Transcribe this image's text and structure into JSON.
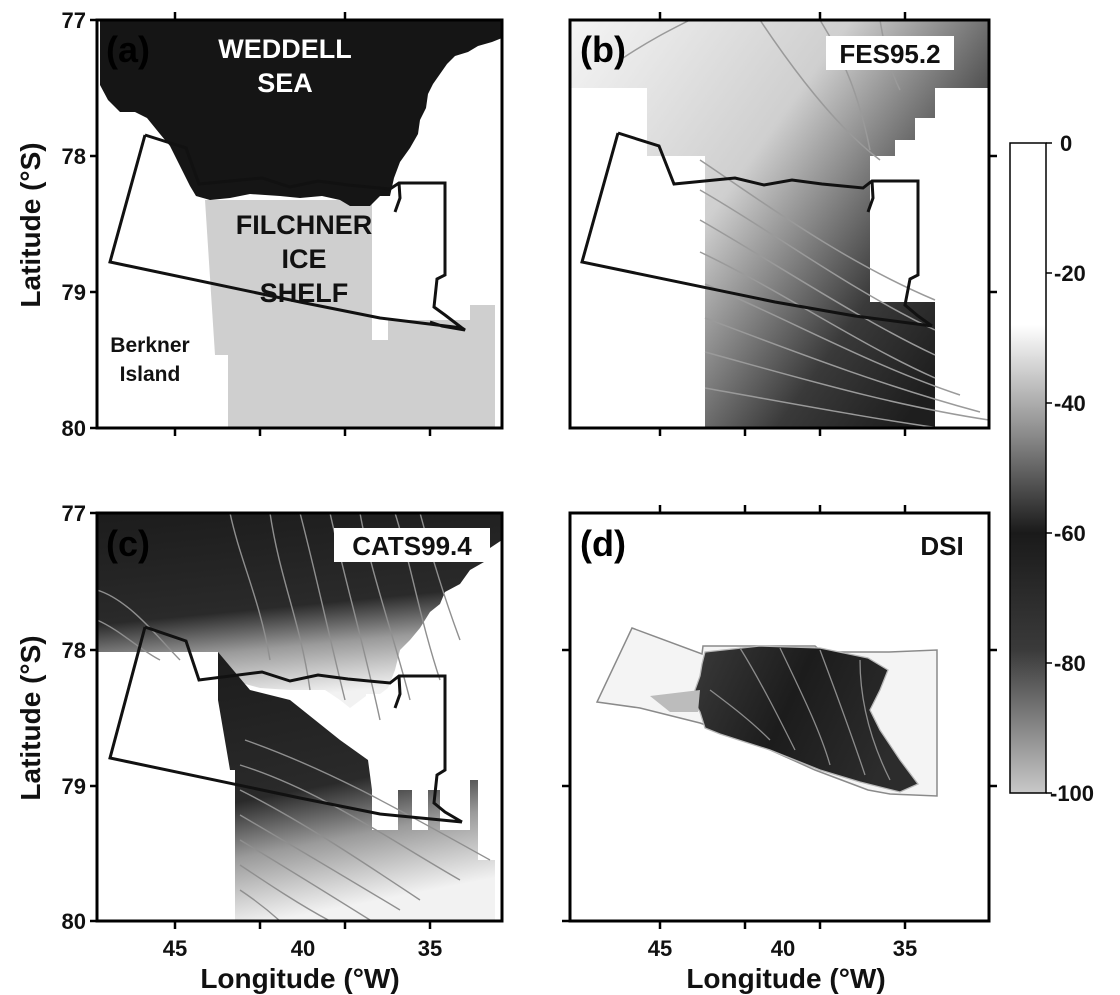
{
  "figure": {
    "ylabel": "Latitude (°S)",
    "xlabel": "Longitude (°W)",
    "lat_ticks": [
      "77",
      "78",
      "79",
      "80"
    ],
    "lon_ticks": [
      "45",
      "40",
      "35"
    ],
    "colorbar_ticks": [
      "0",
      "-20",
      "-40",
      "-60",
      "-80",
      "-100"
    ]
  },
  "panels": {
    "a": {
      "label": "(a)",
      "weddell_1": "WEDDELL",
      "weddell_2": "SEA",
      "filchner_1": "FILCHNER",
      "filchner_2": "ICE",
      "filchner_3": "SHELF",
      "berkner_1": "Berkner",
      "berkner_2": "Island"
    },
    "b": {
      "label": "(b)",
      "model": "FES95.2"
    },
    "c": {
      "label": "(c)",
      "model": "CATS99.4"
    },
    "d": {
      "label": "(d)",
      "model": "DSI"
    }
  },
  "colors": {
    "ocean_dark": "#151515",
    "ice_light": "#cfcfcf",
    "contour": "#9a9a9a",
    "frame": "#000000"
  },
  "chart_data": {
    "type": "heatmap",
    "panels": [
      "(a)",
      "(b) FES95.2",
      "(c) CATS99.4",
      "(d) DSI"
    ],
    "x_axis": {
      "label": "Longitude (°W)",
      "ticks": [
        45,
        40,
        35
      ],
      "range": [
        48,
        32
      ]
    },
    "y_axis": {
      "label": "Latitude (°S)",
      "ticks": [
        77,
        78,
        79,
        80
      ],
      "range": [
        77,
        80
      ]
    },
    "colorbar": {
      "ticks": [
        0,
        -20,
        -40,
        -60,
        -80,
        -100
      ],
      "range": [
        0,
        -100
      ]
    }
  }
}
